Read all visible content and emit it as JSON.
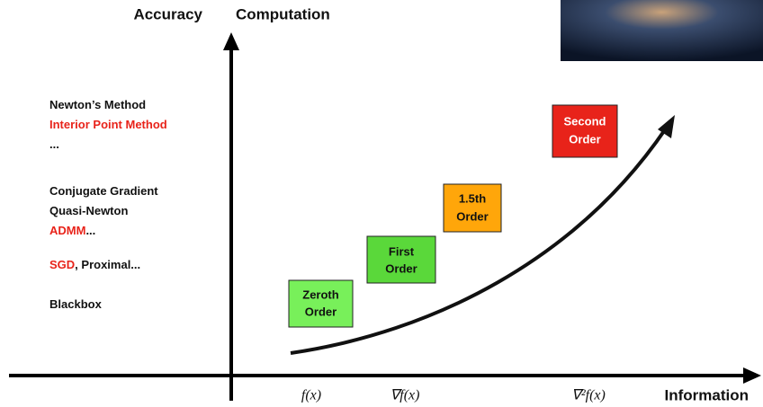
{
  "axes": {
    "y_labels": [
      "Accuracy",
      "Computation"
    ],
    "x_label": "Information"
  },
  "methods": [
    [
      {
        "text": "Newton’s Method"
      }
    ],
    [
      {
        "text": "Interior Point Method",
        "highlight": true
      }
    ],
    [
      {
        "text": "..."
      }
    ],
    [
      {
        "text": "Conjugate Gradient"
      }
    ],
    [
      {
        "text": "Quasi-Newton"
      }
    ],
    [
      {
        "text": "ADMM",
        "highlight": true
      },
      {
        "text": "..."
      }
    ],
    [
      {
        "text": "SGD",
        "highlight": true
      },
      {
        "text": ", Proximal..."
      }
    ],
    [
      {
        "text": "Blackbox"
      }
    ]
  ],
  "boxes": [
    {
      "lines": [
        "Zeroth",
        "Order"
      ]
    },
    {
      "lines": [
        "First",
        "Order"
      ]
    },
    {
      "lines": [
        "1.5th",
        "Order"
      ]
    },
    {
      "lines": [
        "Second",
        "Order"
      ]
    }
  ],
  "x_ticks": [
    "f(x)",
    "∇f(x)",
    "∇²f(x)"
  ]
}
